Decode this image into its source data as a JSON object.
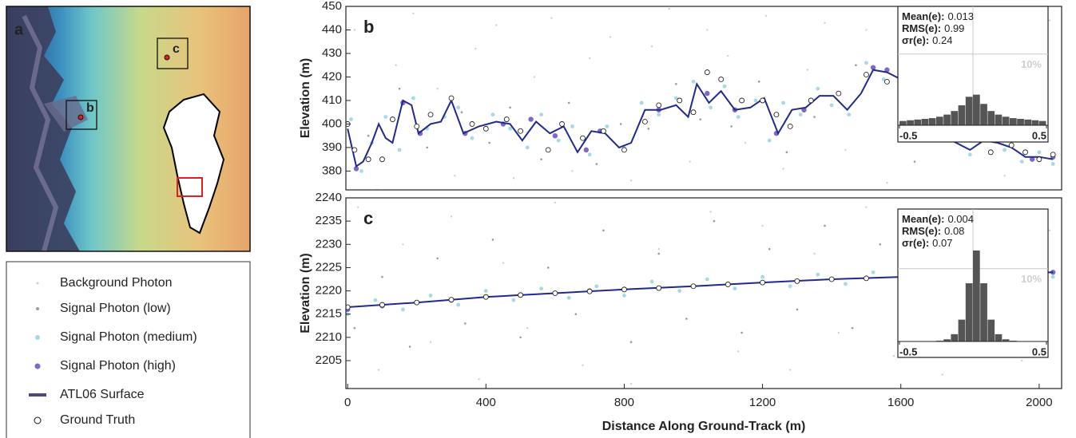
{
  "map": {
    "label": "a",
    "boxes": [
      "b",
      "c"
    ]
  },
  "chart_data": [
    {
      "type": "scatter",
      "panel": "b",
      "ylabel": "Elevation (m)",
      "xlim": [
        -5,
        2065
      ],
      "ylim": [
        372,
        450
      ],
      "yticks": [
        380,
        390,
        400,
        410,
        420,
        430,
        440,
        450
      ],
      "series": [
        {
          "name": "Background Photon",
          "type": "scatter",
          "color": "#cfcfcf",
          "x": [
            20,
            85,
            140,
            190,
            260,
            310,
            370,
            430,
            480,
            540,
            590,
            650,
            700,
            760,
            820,
            880,
            930,
            990,
            1040,
            1100,
            1150,
            1210,
            1260,
            1330,
            1380,
            1440,
            1500,
            1560,
            1620,
            1700,
            1760,
            1830,
            1900,
            1960,
            2030
          ],
          "values": [
            440,
            372,
            425,
            447,
            415,
            378,
            432,
            442,
            377,
            420,
            445,
            380,
            428,
            437,
            376,
            433,
            449,
            384,
            440,
            429,
            392,
            446,
            381,
            423,
            443,
            389,
            440,
            375,
            434,
            408,
            447,
            425,
            378,
            411,
            444
          ]
        },
        {
          "name": "Signal Photon (low)",
          "type": "scatter",
          "color": "#9a9a9a",
          "x": [
            60,
            150,
            230,
            330,
            410,
            470,
            560,
            640,
            720,
            790,
            870,
            950,
            1020,
            1110,
            1190,
            1270,
            1350,
            1470,
            1640,
            1850
          ],
          "values": [
            395,
            415,
            390,
            405,
            392,
            407,
            385,
            409,
            383,
            400,
            398,
            417,
            402,
            399,
            418,
            388,
            403,
            425,
            384,
            397
          ]
        },
        {
          "name": "Signal Photon (medium)",
          "type": "scatter",
          "color": "#a6d8e8",
          "x": [
            10,
            40,
            70,
            110,
            150,
            190,
            230,
            280,
            320,
            360,
            420,
            470,
            520,
            560,
            610,
            650,
            700,
            750,
            800,
            850,
            900,
            950,
            1000,
            1050,
            1090,
            1130,
            1180,
            1220,
            1260,
            1310,
            1360,
            1400,
            1450,
            1500,
            1550,
            1600,
            1700,
            1750,
            1800,
            1850,
            1900,
            1950,
            2000,
            2040
          ],
          "values": [
            402,
            380,
            392,
            403,
            389,
            411,
            398,
            403,
            407,
            394,
            404,
            398,
            390,
            404,
            393,
            399,
            387,
            399,
            390,
            409,
            404,
            411,
            418,
            407,
            416,
            403,
            410,
            393,
            409,
            404,
            415,
            408,
            404,
            426,
            419,
            415,
            400,
            394,
            387,
            396,
            389,
            384,
            388,
            383
          ]
        },
        {
          "name": "Signal Photon (high)",
          "type": "scatter",
          "color": "#7b68c8",
          "x": [
            25,
            160,
            210,
            340,
            450,
            530,
            600,
            690,
            730,
            900,
            1040,
            1120,
            1240,
            1320,
            1520,
            1560,
            1650,
            1980,
            2040
          ],
          "values": [
            381,
            409,
            396,
            396,
            400,
            402,
            395,
            389,
            397,
            406,
            413,
            406,
            396,
            406,
            424,
            423,
            403,
            385,
            386
          ]
        },
        {
          "name": "ATL06 Surface",
          "type": "line",
          "color": "#1f2a8c",
          "x": [
            0,
            25,
            45,
            70,
            90,
            110,
            130,
            160,
            185,
            205,
            240,
            270,
            300,
            335,
            380,
            430,
            470,
            505,
            545,
            585,
            625,
            665,
            705,
            745,
            785,
            820,
            860,
            905,
            950,
            985,
            1010,
            1045,
            1080,
            1120,
            1165,
            1205,
            1245,
            1285,
            1325,
            1365,
            1405,
            1445,
            1485,
            1520,
            1560,
            1600,
            1640,
            1680,
            1720,
            1760,
            1800,
            1840,
            1880,
            1920,
            1960,
            2000,
            2040
          ],
          "values": [
            398,
            382,
            384,
            392,
            400,
            394,
            392,
            410,
            408,
            396,
            400,
            401,
            410,
            396,
            399,
            401,
            400,
            393,
            401,
            396,
            399,
            388,
            397,
            396,
            390,
            392,
            406,
            406,
            408,
            403,
            417,
            409,
            414,
            406,
            407,
            411,
            396,
            406,
            407,
            412,
            412,
            406,
            413,
            423,
            422,
            419,
            405,
            398,
            395,
            392,
            389,
            393,
            392,
            390,
            386,
            386,
            385
          ]
        },
        {
          "name": "Ground Truth",
          "type": "truth",
          "color": "#ffffff",
          "x": [
            0,
            20,
            60,
            100,
            130,
            200,
            240,
            300,
            360,
            400,
            460,
            500,
            580,
            620,
            680,
            740,
            800,
            860,
            900,
            960,
            1000,
            1040,
            1080,
            1140,
            1200,
            1240,
            1280,
            1340,
            1420,
            1500,
            1560,
            1720,
            1800,
            1860,
            1920,
            1960,
            2000,
            2040
          ],
          "values": [
            400,
            389,
            385,
            385,
            402,
            399,
            404,
            411,
            400,
            398,
            402,
            397,
            389,
            400,
            394,
            397,
            389,
            401,
            408,
            410,
            405,
            422,
            419,
            410,
            410,
            404,
            399,
            410,
            413,
            421,
            418,
            396,
            398,
            388,
            391,
            388,
            385,
            387
          ]
        }
      ],
      "inset": {
        "stats": [
          {
            "label": "Mean(e):",
            "value": "0.013"
          },
          {
            "label": "RMS(e):",
            "value": "0.99"
          },
          {
            "label": "σr(e):",
            "value": "0.24"
          }
        ],
        "bins": [
          -0.5,
          -0.45,
          -0.4,
          -0.35,
          -0.3,
          -0.25,
          -0.2,
          -0.15,
          -0.1,
          -0.05,
          0,
          0.05,
          0.1,
          0.15,
          0.2,
          0.25,
          0.3,
          0.35,
          0.4,
          0.45,
          0.5
        ],
        "counts": [
          0.6,
          0.7,
          0.8,
          0.9,
          1.0,
          1.2,
          1.5,
          2.0,
          2.8,
          4.0,
          4.3,
          3.0,
          2.0,
          1.5,
          1.2,
          1.0,
          0.9,
          0.8,
          0.7,
          0.6
        ],
        "color": "#555555",
        "xlim": [
          -0.5,
          0.5
        ],
        "xticks": [
          {
            "value": -0.5,
            "label": "-0.5"
          },
          0.5
        ],
        "ylim": [
          0,
          16.7
        ],
        "yticks": [
          {
            "value": 10,
            "label": "10%"
          }
        ]
      }
    },
    {
      "type": "scatter",
      "panel": "c",
      "ylabel": "Elevation (m)",
      "xlabel": "Distance Along Ground-Track (m)",
      "xlim": [
        -5,
        2065
      ],
      "xticks": [
        0,
        400,
        800,
        1200,
        1600,
        2000
      ],
      "ylim": [
        2199,
        2240
      ],
      "yticks": [
        2205,
        2210,
        2215,
        2220,
        2225,
        2230,
        2235,
        2240
      ],
      "series": [
        {
          "type": "scatter",
          "color": "#cfcfcf",
          "x": [
            30,
            90,
            160,
            240,
            300,
            380,
            450,
            520,
            600,
            680,
            740,
            820,
            900,
            980,
            1050,
            1130,
            1200,
            1280,
            1350,
            1420,
            1500,
            1580,
            1650,
            1720,
            1800,
            1880,
            1950,
            2030
          ],
          "values": [
            2238,
            2203,
            2230,
            2209,
            2236,
            2201,
            2226,
            2212,
            2239,
            2204,
            2233,
            2200,
            2229,
            2214,
            2237,
            2207,
            2234,
            2203,
            2228,
            2211,
            2238,
            2206,
            2231,
            2202,
            2236,
            2213,
            2205,
            2233
          ]
        },
        {
          "type": "scatter",
          "color": "#9a9a9a",
          "x": [
            20,
            100,
            180,
            260,
            340,
            420,
            500,
            580,
            660,
            740,
            820,
            900,
            980,
            1060,
            1140,
            1220,
            1300,
            1380,
            1460,
            1540,
            1620,
            1700,
            1780,
            1860,
            1940,
            2020
          ],
          "values": [
            2212,
            2223,
            2208,
            2227,
            2213,
            2231,
            2210,
            2225,
            2215,
            2233,
            2209,
            2228,
            2214,
            2235,
            2211,
            2229,
            2216,
            2234,
            2212,
            2230,
            2217,
            2232,
            2213,
            2228,
            2218,
            2230
          ]
        },
        {
          "type": "scatter",
          "color": "#a6d8e8",
          "x": [
            0,
            80,
            160,
            240,
            320,
            400,
            480,
            560,
            640,
            720,
            800,
            880,
            960,
            1040,
            1120,
            1200,
            1280,
            1360,
            1440,
            1520,
            1600,
            1680,
            1760,
            1840,
            1920,
            2000,
            2040
          ],
          "values": [
            2215,
            2218,
            2216,
            2219,
            2217,
            2220,
            2218,
            2220.5,
            2218.5,
            2221,
            2219,
            2222,
            2220,
            2222.5,
            2220.5,
            2223,
            2221,
            2223.5,
            2221.5,
            2224,
            2222,
            2224.5,
            2222.5,
            2224.5,
            2223,
            2225,
            2223
          ]
        },
        {
          "type": "scatter",
          "color": "#7b68c8",
          "x": [
            0,
            100,
            200,
            300,
            400,
            500,
            600,
            700,
            800,
            900,
            1000,
            1100,
            1200,
            1300,
            1400,
            1500,
            1600,
            1700,
            1800,
            1900,
            2000,
            2040
          ],
          "values": [
            2216,
            2216.8,
            2217.5,
            2218,
            2218.7,
            2219.1,
            2219.5,
            2220,
            2220.3,
            2220.6,
            2221,
            2221.4,
            2221.8,
            2222.1,
            2222.5,
            2222.7,
            2223,
            2223.2,
            2223.5,
            2223.7,
            2223.9,
            2224
          ]
        },
        {
          "type": "line",
          "color": "#1f2a8c",
          "x": [
            0,
            200,
            400,
            600,
            800,
            1000,
            1200,
            1400,
            1600,
            1800,
            2040
          ],
          "values": [
            2216.5,
            2217.5,
            2218.7,
            2219.5,
            2220.3,
            2221,
            2221.8,
            2222.5,
            2223,
            2223.5,
            2224
          ]
        },
        {
          "type": "truth",
          "color": "#ffffff",
          "x": [
            0,
            100,
            200,
            300,
            400,
            500,
            600,
            700,
            800,
            900,
            1000,
            1100,
            1200,
            1300,
            1400,
            1500,
            1600,
            1700,
            1800,
            1900,
            2000
          ],
          "values": [
            2216.5,
            2217,
            2217.5,
            2218.1,
            2218.7,
            2219.1,
            2219.5,
            2219.9,
            2220.3,
            2220.6,
            2221,
            2221.4,
            2221.8,
            2222.1,
            2222.5,
            2222.7,
            2223,
            2223.2,
            2223.5,
            2223.7,
            2223.9
          ]
        }
      ],
      "inset": {
        "stats": [
          {
            "label": "Mean(e):",
            "value": "0.004"
          },
          {
            "label": "RMS(e):",
            "value": "0.08"
          },
          {
            "label": "σr(e):",
            "value": "0.07"
          }
        ],
        "bins": [
          -0.5,
          -0.45,
          -0.4,
          -0.35,
          -0.3,
          -0.25,
          -0.2,
          -0.15,
          -0.1,
          -0.05,
          0,
          0.05,
          0.1,
          0.15,
          0.2,
          0.25,
          0.3,
          0.35,
          0.4,
          0.45,
          0.5
        ],
        "counts": [
          0,
          0,
          0,
          0,
          0,
          0.1,
          0.3,
          1,
          3,
          8,
          12.5,
          8,
          3,
          1,
          0.3,
          0.1,
          0,
          0,
          0,
          0
        ],
        "color": "#555555",
        "xlim": [
          -0.5,
          0.5
        ],
        "xticks": [
          {
            "value": -0.5,
            "label": "-0.5"
          },
          0.5
        ],
        "ylim": [
          0,
          18.2
        ],
        "yticks": [
          {
            "value": 10,
            "label": "10%"
          }
        ]
      }
    }
  ]
}
